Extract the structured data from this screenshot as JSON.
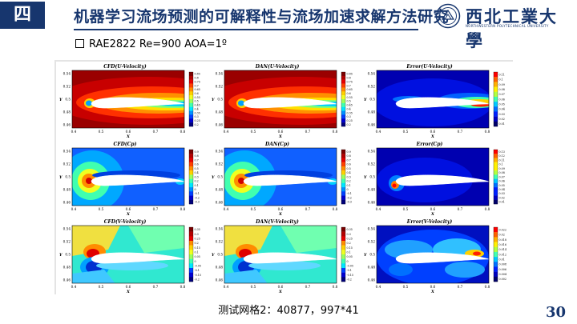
{
  "header": {
    "badge": "四",
    "title": "机器学习流场预测的可解释性与流场加速求解方法研究",
    "university_name": "西北工業大學",
    "university_sub": "NORTHWESTERN POLYTECHNICAL UNIVERSITY"
  },
  "case_label": "RAE2822 Re=900 AOA=1º",
  "caption": "测试网格2：40877，997*41",
  "page_number": "30",
  "panels": [
    {
      "title": "CFD(U-Velocity)",
      "type": "u"
    },
    {
      "title": "DAN(U-Velocity)",
      "type": "u"
    },
    {
      "title": "Error(U-Velocity)",
      "type": "err_u"
    },
    {
      "title": "CFD(Cp)",
      "type": "cp"
    },
    {
      "title": "DAN(Cp)",
      "type": "cp"
    },
    {
      "title": "Error(Cp)",
      "type": "err_cp"
    },
    {
      "title": "CFD(V-Velocity)",
      "type": "v"
    },
    {
      "title": "DAN(V-Velocity)",
      "type": "v"
    },
    {
      "title": "Error(V-Velocity)",
      "type": "err_v"
    }
  ],
  "axes": {
    "xlabel": "X",
    "ylabel": "Y",
    "x_ticks": [
      "0.4",
      "0.5",
      "0.6",
      "0.7",
      "0.8"
    ],
    "y_ticks": [
      "0.54",
      "0.52",
      "0.5",
      "0.48",
      "0.46"
    ]
  },
  "colorbars": {
    "u": [
      "0.85",
      "0.8",
      "0.75",
      "0.7",
      "0.65",
      "0.6",
      "0.55",
      "0.5",
      "0.45",
      "0.4",
      "0.35",
      "0.3",
      "0.25",
      "0.2"
    ],
    "err_u": [
      "0.11",
      "0.1",
      "0.09",
      "0.08",
      "0.07",
      "0.06",
      "0.05",
      "0.04",
      "0.03",
      "0.02",
      "0.01"
    ],
    "cp": [
      "0.9",
      "0.8",
      "0.7",
      "0.6",
      "0.5",
      "0.4",
      "0.3",
      "0.2",
      "0.1",
      "0",
      "-0.1",
      "-0.2",
      "-0.3"
    ],
    "err_cp": [
      "0.13",
      "0.12",
      "0.11",
      "0.1",
      "0.09",
      "0.08",
      "0.07",
      "0.06",
      "0.05",
      "0.04",
      "0.03",
      "0.02",
      "0.01"
    ],
    "v": [
      "0.35",
      "0.3",
      "0.25",
      "0.2",
      "0.15",
      "0.1",
      "0.05",
      "0",
      "-0.05",
      "-0.1",
      "-0.15",
      "-0.2"
    ],
    "err_v": [
      "0.022",
      "0.02",
      "0.018",
      "0.016",
      "0.014",
      "0.012",
      "0.01",
      "0.008",
      "0.006",
      "0.004",
      "0.002"
    ]
  }
}
